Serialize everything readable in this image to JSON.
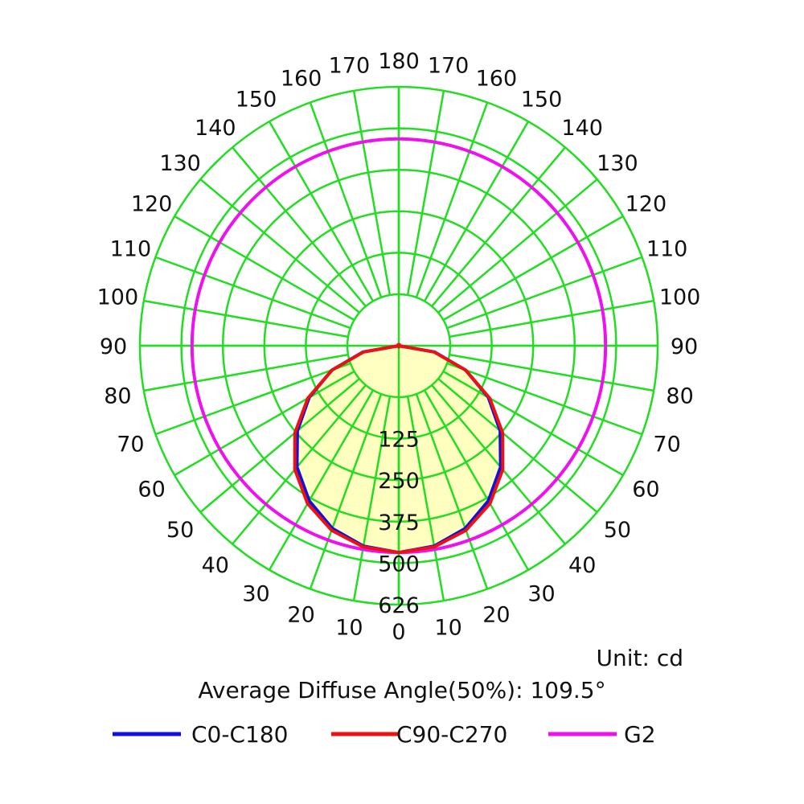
{
  "chart_data": {
    "type": "polar",
    "title": "",
    "unit_text": "Unit: cd",
    "angle_text": "Average Diffuse Angle(50%): 109.5°",
    "angle_labels": [
      "0",
      "10",
      "20",
      "30",
      "40",
      "50",
      "60",
      "70",
      "80",
      "90",
      "100",
      "110",
      "120",
      "130",
      "140",
      "150",
      "160",
      "170",
      "180"
    ],
    "radial_labels": [
      "125",
      "250",
      "375",
      "500",
      "626"
    ],
    "r_max": 626,
    "grid": true,
    "legend_position": "bottom",
    "colors": {
      "grid": "#22dd22",
      "fill": "#ffffc0",
      "c0": "#1010e0",
      "c90": "#ee1111",
      "g2": "#ee11ee"
    },
    "series": [
      {
        "name": "C0-C180",
        "color": "#1010e0",
        "angles": [
          0,
          10,
          20,
          30,
          40,
          50,
          60,
          70,
          80,
          90
        ],
        "values": [
          500,
          492,
          470,
          433,
          383,
          320,
          250,
          172,
          88,
          0
        ]
      },
      {
        "name": "C90-C270",
        "color": "#ee1111",
        "angles": [
          0,
          10,
          20,
          30,
          40,
          50,
          60,
          70,
          80,
          90
        ],
        "values": [
          500,
          494,
          475,
          441,
          391,
          328,
          254,
          172,
          86,
          0
        ]
      },
      {
        "name": "G2",
        "color": "#ee11ee",
        "angles": [
          0,
          90,
          180
        ],
        "values": [
          500,
          500,
          500
        ]
      }
    ]
  }
}
